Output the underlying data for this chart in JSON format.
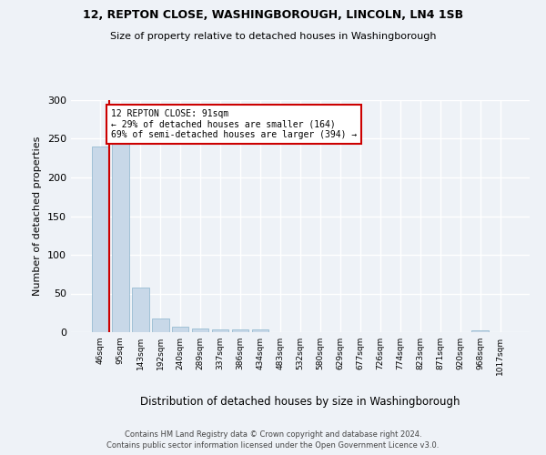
{
  "title1": "12, REPTON CLOSE, WASHINGBOROUGH, LINCOLN, LN4 1SB",
  "title2": "Size of property relative to detached houses in Washingborough",
  "xlabel": "Distribution of detached houses by size in Washingborough",
  "ylabel": "Number of detached properties",
  "bar_color": "#c8d8e8",
  "bar_edge_color": "#8ab4cc",
  "categories": [
    "46sqm",
    "95sqm",
    "143sqm",
    "192sqm",
    "240sqm",
    "289sqm",
    "337sqm",
    "386sqm",
    "434sqm",
    "483sqm",
    "532sqm",
    "580sqm",
    "629sqm",
    "677sqm",
    "726sqm",
    "774sqm",
    "823sqm",
    "871sqm",
    "920sqm",
    "968sqm",
    "1017sqm"
  ],
  "values": [
    240,
    245,
    58,
    18,
    7,
    5,
    3,
    3,
    3,
    0,
    0,
    0,
    0,
    0,
    0,
    0,
    0,
    0,
    0,
    2,
    0
  ],
  "ylim": [
    0,
    300
  ],
  "yticks": [
    0,
    50,
    100,
    150,
    200,
    250,
    300
  ],
  "property_line_color": "#cc0000",
  "annotation_text": "12 REPTON CLOSE: 91sqm\n← 29% of detached houses are smaller (164)\n69% of semi-detached houses are larger (394) →",
  "annotation_box_color": "#ffffff",
  "annotation_box_edge": "#cc0000",
  "footer1": "Contains HM Land Registry data © Crown copyright and database right 2024.",
  "footer2": "Contains public sector information licensed under the Open Government Licence v3.0.",
  "bg_color": "#eef2f7",
  "grid_color": "#ffffff"
}
